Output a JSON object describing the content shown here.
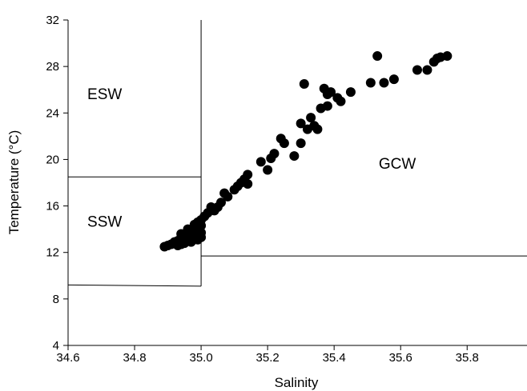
{
  "chart_data": {
    "type": "scatter",
    "title": "",
    "xlabel": "Salinity",
    "ylabel": "Temperature (°C)",
    "xlim": [
      34.6,
      35.98
    ],
    "ylim": [
      4,
      32
    ],
    "xticks": [
      34.6,
      34.8,
      35.0,
      35.2,
      35.4,
      35.6,
      35.8
    ],
    "yticks": [
      4,
      8,
      12,
      16,
      20,
      24,
      28,
      32
    ],
    "xtick_labels": [
      "34.6",
      "34.8",
      "35.0",
      "35.2",
      "35.4",
      "35.6",
      "35.8"
    ],
    "ytick_labels": [
      "4",
      "8",
      "12",
      "16",
      "20",
      "24",
      "28",
      "32"
    ],
    "grid": false,
    "marker_color": "#000000",
    "regions": [
      {
        "label": "ESW",
        "label_at": [
          34.71,
          25.2
        ]
      },
      {
        "label": "SSW",
        "label_at": [
          34.71,
          14.2
        ]
      },
      {
        "label": "GCW",
        "label_at": [
          35.59,
          19.2
        ]
      }
    ],
    "boundary_lines": [
      {
        "points": [
          [
            35.0,
            32
          ],
          [
            35.0,
            9.1
          ]
        ]
      },
      {
        "points": [
          [
            34.6,
            18.5
          ],
          [
            35.0,
            18.5
          ]
        ]
      },
      {
        "points": [
          [
            34.6,
            9.2
          ],
          [
            35.0,
            9.1
          ]
        ]
      },
      {
        "points": [
          [
            35.0,
            11.7
          ],
          [
            35.98,
            11.7
          ]
        ]
      }
    ],
    "series": [
      {
        "x": [
          34.89,
          34.9,
          34.91,
          34.92,
          34.92,
          34.93,
          34.93,
          34.94,
          34.94,
          34.94,
          34.95,
          34.95,
          34.95,
          34.96,
          34.96,
          34.96,
          34.97,
          34.97,
          34.97,
          34.98,
          34.98,
          34.98,
          34.99,
          34.99,
          35.0,
          35.0,
          35.0,
          34.93,
          34.95,
          34.97,
          34.99,
          34.96,
          34.98,
          34.94,
          34.97,
          34.99,
          35.0,
          35.01,
          35.02,
          35.03,
          35.04,
          35.05,
          35.06,
          35.07,
          35.08,
          35.1,
          35.11,
          35.12,
          35.13,
          35.14,
          35.14,
          35.18,
          35.2,
          35.21,
          35.22,
          35.24,
          35.25,
          35.28,
          35.3,
          35.3,
          35.31,
          35.32,
          35.33,
          35.34,
          35.35,
          35.36,
          35.37,
          35.38,
          35.38,
          35.39,
          35.41,
          35.42,
          35.45,
          35.51,
          35.53,
          35.55,
          35.58,
          35.65,
          35.68,
          35.7,
          35.71,
          35.72,
          35.74
        ],
        "y": [
          12.5,
          12.6,
          12.7,
          12.8,
          12.9,
          12.8,
          13.0,
          12.7,
          13.1,
          13.3,
          12.9,
          13.2,
          13.5,
          13.0,
          13.4,
          13.7,
          13.1,
          13.5,
          13.9,
          13.3,
          13.7,
          14.1,
          13.4,
          13.9,
          13.3,
          13.7,
          14.3,
          12.6,
          12.8,
          12.9,
          13.1,
          14.0,
          14.4,
          13.6,
          13.2,
          14.6,
          14.8,
          15.1,
          15.4,
          15.9,
          15.6,
          15.9,
          16.3,
          17.1,
          16.8,
          17.4,
          17.7,
          18.0,
          18.3,
          18.7,
          17.9,
          19.8,
          19.1,
          20.1,
          20.5,
          21.8,
          21.4,
          20.3,
          21.4,
          23.1,
          26.5,
          22.6,
          23.6,
          22.9,
          22.6,
          24.4,
          26.1,
          24.6,
          25.6,
          25.8,
          25.3,
          25.0,
          25.8,
          26.6,
          28.9,
          26.6,
          26.9,
          27.7,
          27.7,
          28.4,
          28.7,
          28.8,
          28.9
        ]
      }
    ]
  }
}
